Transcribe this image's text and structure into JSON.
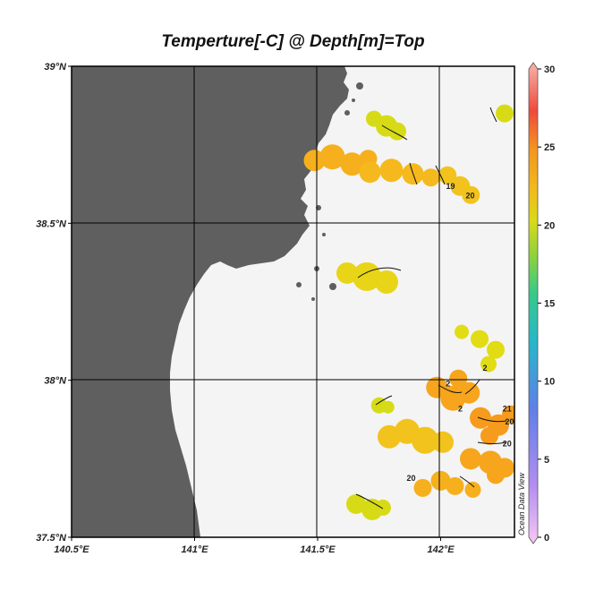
{
  "title": "Temperture[-C] @ Depth[m]=Top",
  "map": {
    "lon_range": [
      140.5,
      142.3
    ],
    "lat_range": [
      37.5,
      39.0
    ],
    "lon_ticks": [
      {
        "value": 140.5,
        "label": "140.5°E"
      },
      {
        "value": 141.0,
        "label": "141°E"
      },
      {
        "value": 141.5,
        "label": "141.5°E"
      },
      {
        "value": 142.0,
        "label": "142°E"
      }
    ],
    "lat_ticks": [
      {
        "value": 39.0,
        "label": "39°N"
      },
      {
        "value": 38.5,
        "label": "38.5°N"
      },
      {
        "value": 38.0,
        "label": "38°N"
      },
      {
        "value": 37.5,
        "label": "37.5°N"
      }
    ],
    "grid": true,
    "colors": {
      "land": "#5f5f5f",
      "ocean": "#f4f4f4",
      "border": "#000000"
    }
  },
  "colorbar": {
    "min": 0,
    "max": 30,
    "ticks": [
      {
        "value": 30,
        "label": "30"
      },
      {
        "value": 25,
        "label": "25"
      },
      {
        "value": 20,
        "label": "20"
      },
      {
        "value": 15,
        "label": "15"
      },
      {
        "value": 10,
        "label": "10"
      },
      {
        "value": 5,
        "label": "5"
      },
      {
        "value": 0,
        "label": "0"
      }
    ],
    "credit": "Ocean Data View"
  },
  "chart_data": {
    "type": "heatmap",
    "variable": "Temperture[-C]",
    "depth": "Top",
    "patches": [
      {
        "lon": 141.78,
        "lat": 38.81,
        "temp": 18.5
      },
      {
        "lon": 141.56,
        "lat": 38.7,
        "temp": 21.5
      },
      {
        "lon": 141.8,
        "lat": 38.68,
        "temp": 21.0
      },
      {
        "lon": 142.05,
        "lat": 38.63,
        "temp": 20.5
      },
      {
        "lon": 142.26,
        "lat": 38.85,
        "temp": 18.5
      },
      {
        "lon": 141.7,
        "lat": 38.33,
        "temp": 19.5
      },
      {
        "lon": 142.18,
        "lat": 38.08,
        "temp": 19.0
      },
      {
        "lon": 141.75,
        "lat": 37.92,
        "temp": 18.5
      },
      {
        "lon": 142.05,
        "lat": 37.96,
        "temp": 22.0
      },
      {
        "lon": 142.22,
        "lat": 37.88,
        "temp": 22.5
      },
      {
        "lon": 141.9,
        "lat": 37.82,
        "temp": 20.5
      },
      {
        "lon": 142.18,
        "lat": 37.75,
        "temp": 22.0
      },
      {
        "lon": 142.0,
        "lat": 37.68,
        "temp": 21.5
      },
      {
        "lon": 141.7,
        "lat": 37.6,
        "temp": 18.5
      }
    ],
    "contour_labels": [
      {
        "lon": 142.04,
        "lat": 38.61,
        "text": "19"
      },
      {
        "lon": 142.12,
        "lat": 38.58,
        "text": "20"
      },
      {
        "lon": 142.18,
        "lat": 38.03,
        "text": "2"
      },
      {
        "lon": 142.03,
        "lat": 37.98,
        "text": "2"
      },
      {
        "lon": 142.08,
        "lat": 37.9,
        "text": "2"
      },
      {
        "lon": 142.27,
        "lat": 37.9,
        "text": "21"
      },
      {
        "lon": 142.28,
        "lat": 37.86,
        "text": "20"
      },
      {
        "lon": 142.27,
        "lat": 37.79,
        "text": "20"
      },
      {
        "lon": 141.88,
        "lat": 37.68,
        "text": "20"
      }
    ]
  }
}
